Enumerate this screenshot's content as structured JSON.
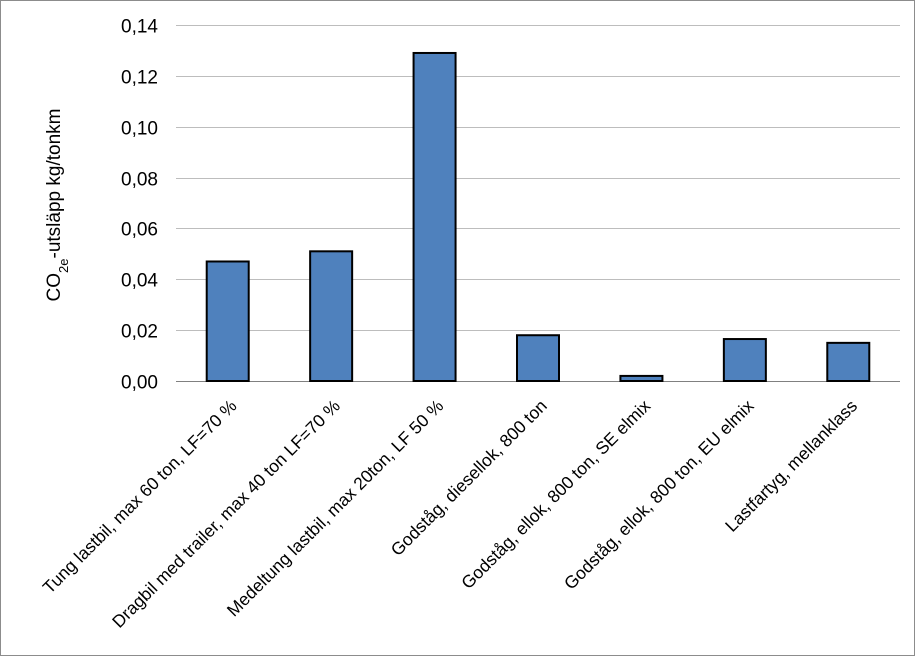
{
  "chart_data": {
    "type": "bar",
    "title": "",
    "xlabel": "",
    "ylabel": {
      "base": "CO",
      "sub": "2e",
      "rest": "-utsläpp kg/tonkm"
    },
    "ylim": [
      0,
      0.14
    ],
    "yticks": [
      "0,00",
      "0,02",
      "0,04",
      "0,06",
      "0,08",
      "0,10",
      "0,12",
      "0,14"
    ],
    "grid": true,
    "legend": "none",
    "bar_color": "#4f81bd",
    "categories": [
      "Tung lastbil, max 60 ton, LF=70 %",
      "Dragbil med trailer, max 40 ton LF=70 %",
      "Medeltung lastbil, max 20ton, LF 50 %",
      "Godståg, diesellok, 800 ton",
      "Godståg, ellok, 800 ton, SE elmix",
      "Godståg, ellok, 800 ton, EU elmix",
      "Lastfartyg, mellanklass"
    ],
    "values": [
      0.047,
      0.051,
      0.129,
      0.018,
      0.002,
      0.0165,
      0.015
    ]
  }
}
